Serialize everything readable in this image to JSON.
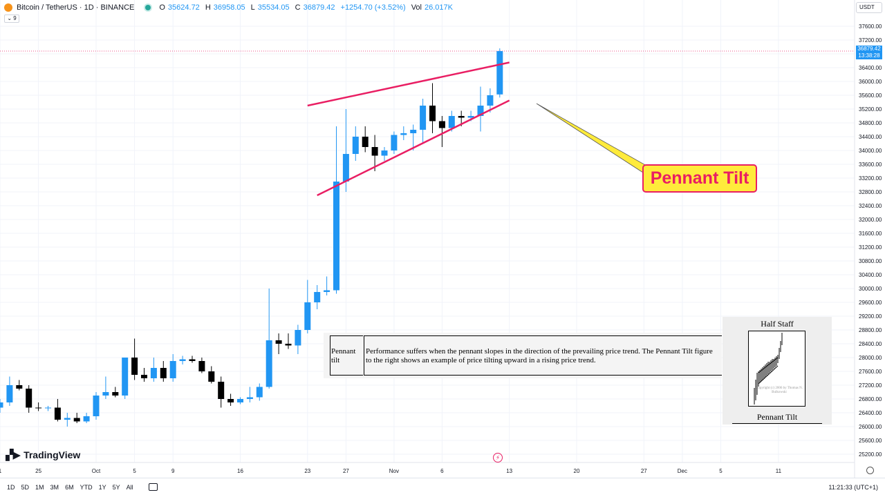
{
  "header": {
    "symbol": "Bitcoin / TetherUS · 1D · BINANCE",
    "ohlc": [
      {
        "label": "O",
        "value": "35624.72"
      },
      {
        "label": "H",
        "value": "36958.05"
      },
      {
        "label": "L",
        "value": "35534.05"
      },
      {
        "label": "C",
        "value": "36879.42"
      }
    ],
    "change": "+1254.70 (+3.52%)",
    "vol_label": "Vol",
    "vol_value": "26.017K",
    "collapse_label": "⌄ 9"
  },
  "currency": "USDT",
  "last_price": "36879.42",
  "countdown": "13:38:28",
  "colors": {
    "up": "#2196f3",
    "down": "#000000",
    "trendline": "#e91e63",
    "callout_bg": "#ffeb3b",
    "price_line": "#e91e63"
  },
  "annotation": {
    "callout": "Pennant Tilt"
  },
  "info_box": {
    "term": "Pennant tilt",
    "text": "Performance suffers when the pennant slopes in the direction of the prevailing price trend. The Pennant Tilt figure to the right shows an example of price tilting upward in a rising price trend."
  },
  "figure": {
    "title": "Half Staff",
    "caption": "Pennant Tilt",
    "copyright": "Copyright (c) 2006 by Thomas N. Bulkowski"
  },
  "logo": "TradingView",
  "bottom_bar": {
    "ranges": [
      "1D",
      "5D",
      "1M",
      "3M",
      "6M",
      "YTD",
      "1Y",
      "5Y",
      "All"
    ],
    "clock": "11:21:33 (UTC+1)"
  },
  "chart_data": {
    "type": "candlestick",
    "y_ticks": [
      "37600.00",
      "37200.00",
      "36800.00",
      "36400.00",
      "36000.00",
      "35600.00",
      "35200.00",
      "34800.00",
      "34400.00",
      "34000.00",
      "33600.00",
      "33200.00",
      "32800.00",
      "32400.00",
      "32000.00",
      "31600.00",
      "31200.00",
      "30800.00",
      "30400.00",
      "30000.00",
      "29600.00",
      "29200.00",
      "28800.00",
      "28400.00",
      "28000.00",
      "27600.00",
      "27200.00",
      "26800.00",
      "26400.00",
      "26000.00",
      "25600.00",
      "25200.00"
    ],
    "x_ticks": [
      {
        "label": "1",
        "date": "2023-09-21"
      },
      {
        "label": "25",
        "date": "2023-09-25"
      },
      {
        "label": "Oct",
        "date": "2023-10-01"
      },
      {
        "label": "5",
        "date": "2023-10-05"
      },
      {
        "label": "9",
        "date": "2023-10-09"
      },
      {
        "label": "16",
        "date": "2023-10-16"
      },
      {
        "label": "23",
        "date": "2023-10-23"
      },
      {
        "label": "27",
        "date": "2023-10-27"
      },
      {
        "label": "Nov",
        "date": "2023-11-01"
      },
      {
        "label": "6",
        "date": "2023-11-06"
      },
      {
        "label": "13",
        "date": "2023-11-13"
      },
      {
        "label": "20",
        "date": "2023-11-20"
      },
      {
        "label": "27",
        "date": "2023-11-27"
      },
      {
        "label": "Dec",
        "date": "2023-12-01"
      },
      {
        "label": "5",
        "date": "2023-12-05"
      },
      {
        "label": "11",
        "date": "2023-12-11"
      }
    ],
    "candles": [
      {
        "date": "2023-09-21",
        "o": 26550,
        "h": 26800,
        "l": 26400,
        "c": 26700
      },
      {
        "date": "2023-09-22",
        "o": 26700,
        "h": 27450,
        "l": 26600,
        "c": 27200
      },
      {
        "date": "2023-09-23",
        "o": 27200,
        "h": 27350,
        "l": 27050,
        "c": 27100
      },
      {
        "date": "2023-09-24",
        "o": 27100,
        "h": 27200,
        "l": 26400,
        "c": 26550
      },
      {
        "date": "2023-09-25",
        "o": 26550,
        "h": 26700,
        "l": 26450,
        "c": 26530
      },
      {
        "date": "2023-09-26",
        "o": 26530,
        "h": 26600,
        "l": 26450,
        "c": 26550
      },
      {
        "date": "2023-09-27",
        "o": 26550,
        "h": 26800,
        "l": 26150,
        "c": 26200
      },
      {
        "date": "2023-09-28",
        "o": 26200,
        "h": 26400,
        "l": 26000,
        "c": 26250
      },
      {
        "date": "2023-09-29",
        "o": 26250,
        "h": 26400,
        "l": 26100,
        "c": 26150
      },
      {
        "date": "2023-09-30",
        "o": 26150,
        "h": 26400,
        "l": 26100,
        "c": 26300
      },
      {
        "date": "2023-10-01",
        "o": 26300,
        "h": 27000,
        "l": 26200,
        "c": 26900
      },
      {
        "date": "2023-10-02",
        "o": 26900,
        "h": 27450,
        "l": 26800,
        "c": 27000
      },
      {
        "date": "2023-10-03",
        "o": 27000,
        "h": 27150,
        "l": 26850,
        "c": 26900
      },
      {
        "date": "2023-10-04",
        "o": 26900,
        "h": 28000,
        "l": 26800,
        "c": 28000
      },
      {
        "date": "2023-10-05",
        "o": 28000,
        "h": 28550,
        "l": 27350,
        "c": 27500
      },
      {
        "date": "2023-10-06",
        "o": 27500,
        "h": 27700,
        "l": 27300,
        "c": 27400
      },
      {
        "date": "2023-10-07",
        "o": 27400,
        "h": 28000,
        "l": 27300,
        "c": 27700
      },
      {
        "date": "2023-10-08",
        "o": 27700,
        "h": 27900,
        "l": 27300,
        "c": 27400
      },
      {
        "date": "2023-10-09",
        "o": 27400,
        "h": 28100,
        "l": 27300,
        "c": 27900
      },
      {
        "date": "2023-10-10",
        "o": 27900,
        "h": 28050,
        "l": 27800,
        "c": 27950
      },
      {
        "date": "2023-10-11",
        "o": 27950,
        "h": 28050,
        "l": 27850,
        "c": 27900
      },
      {
        "date": "2023-10-12",
        "o": 27900,
        "h": 28000,
        "l": 27550,
        "c": 27600
      },
      {
        "date": "2023-10-13",
        "o": 27600,
        "h": 27750,
        "l": 27250,
        "c": 27300
      },
      {
        "date": "2023-10-14",
        "o": 27300,
        "h": 27450,
        "l": 26550,
        "c": 26800
      },
      {
        "date": "2023-10-15",
        "o": 26800,
        "h": 26950,
        "l": 26600,
        "c": 26700
      },
      {
        "date": "2023-10-16",
        "o": 26700,
        "h": 26850,
        "l": 26650,
        "c": 26800
      },
      {
        "date": "2023-10-17",
        "o": 26800,
        "h": 27150,
        "l": 26700,
        "c": 26850
      },
      {
        "date": "2023-10-18",
        "o": 26850,
        "h": 27250,
        "l": 26750,
        "c": 27150
      },
      {
        "date": "2023-10-19",
        "o": 27150,
        "h": 30000,
        "l": 27100,
        "c": 28500
      },
      {
        "date": "2023-10-20",
        "o": 28500,
        "h": 28700,
        "l": 28100,
        "c": 28400
      },
      {
        "date": "2023-10-21",
        "o": 28400,
        "h": 28700,
        "l": 28250,
        "c": 28350
      },
      {
        "date": "2023-10-22",
        "o": 28350,
        "h": 28950,
        "l": 28100,
        "c": 28800
      },
      {
        "date": "2023-10-23",
        "o": 28800,
        "h": 30250,
        "l": 28700,
        "c": 29600
      },
      {
        "date": "2023-10-24",
        "o": 29600,
        "h": 30100,
        "l": 29400,
        "c": 29900
      },
      {
        "date": "2023-10-25",
        "o": 29900,
        "h": 30350,
        "l": 29800,
        "c": 29950
      },
      {
        "date": "2023-10-26",
        "o": 29950,
        "h": 34700,
        "l": 29850,
        "c": 33100
      },
      {
        "date": "2023-10-27",
        "o": 33100,
        "h": 35200,
        "l": 32800,
        "c": 33900
      },
      {
        "date": "2023-10-28",
        "o": 33900,
        "h": 34700,
        "l": 33700,
        "c": 34400
      },
      {
        "date": "2023-10-29",
        "o": 34400,
        "h": 34700,
        "l": 33950,
        "c": 34100
      },
      {
        "date": "2023-10-30",
        "o": 34100,
        "h": 34450,
        "l": 33400,
        "c": 33850
      },
      {
        "date": "2023-10-31",
        "o": 33850,
        "h": 34100,
        "l": 33700,
        "c": 34000
      },
      {
        "date": "2023-11-01",
        "o": 34000,
        "h": 34550,
        "l": 33900,
        "c": 34450
      },
      {
        "date": "2023-11-02",
        "o": 34450,
        "h": 34700,
        "l": 34300,
        "c": 34500
      },
      {
        "date": "2023-11-03",
        "o": 34500,
        "h": 34750,
        "l": 34000,
        "c": 34600
      },
      {
        "date": "2023-11-04",
        "o": 34600,
        "h": 35500,
        "l": 34200,
        "c": 35300
      },
      {
        "date": "2023-11-05",
        "o": 35300,
        "h": 35950,
        "l": 34500,
        "c": 34850
      },
      {
        "date": "2023-11-06",
        "o": 34850,
        "h": 35000,
        "l": 34100,
        "c": 34650
      },
      {
        "date": "2023-11-07",
        "o": 34650,
        "h": 35150,
        "l": 34550,
        "c": 35000
      },
      {
        "date": "2023-11-08",
        "o": 35000,
        "h": 35150,
        "l": 34700,
        "c": 34950
      },
      {
        "date": "2023-11-09",
        "o": 34950,
        "h": 35150,
        "l": 34850,
        "c": 35000
      },
      {
        "date": "2023-11-10",
        "o": 35000,
        "h": 35850,
        "l": 34550,
        "c": 35300
      },
      {
        "date": "2023-11-11",
        "o": 35300,
        "h": 35800,
        "l": 35100,
        "c": 35600
      },
      {
        "date": "2023-11-12",
        "o": 35624.72,
        "h": 36958.05,
        "l": 35534.05,
        "c": 36879.42
      }
    ],
    "trendlines": [
      {
        "from": {
          "date": "2023-10-23",
          "price": 35300
        },
        "to": {
          "date": "2023-11-13",
          "price": 36550
        }
      },
      {
        "from": {
          "date": "2023-10-24",
          "price": 32700
        },
        "to": {
          "date": "2023-11-13",
          "price": 35450
        }
      }
    ],
    "y_range": [
      25000,
      38000
    ]
  }
}
